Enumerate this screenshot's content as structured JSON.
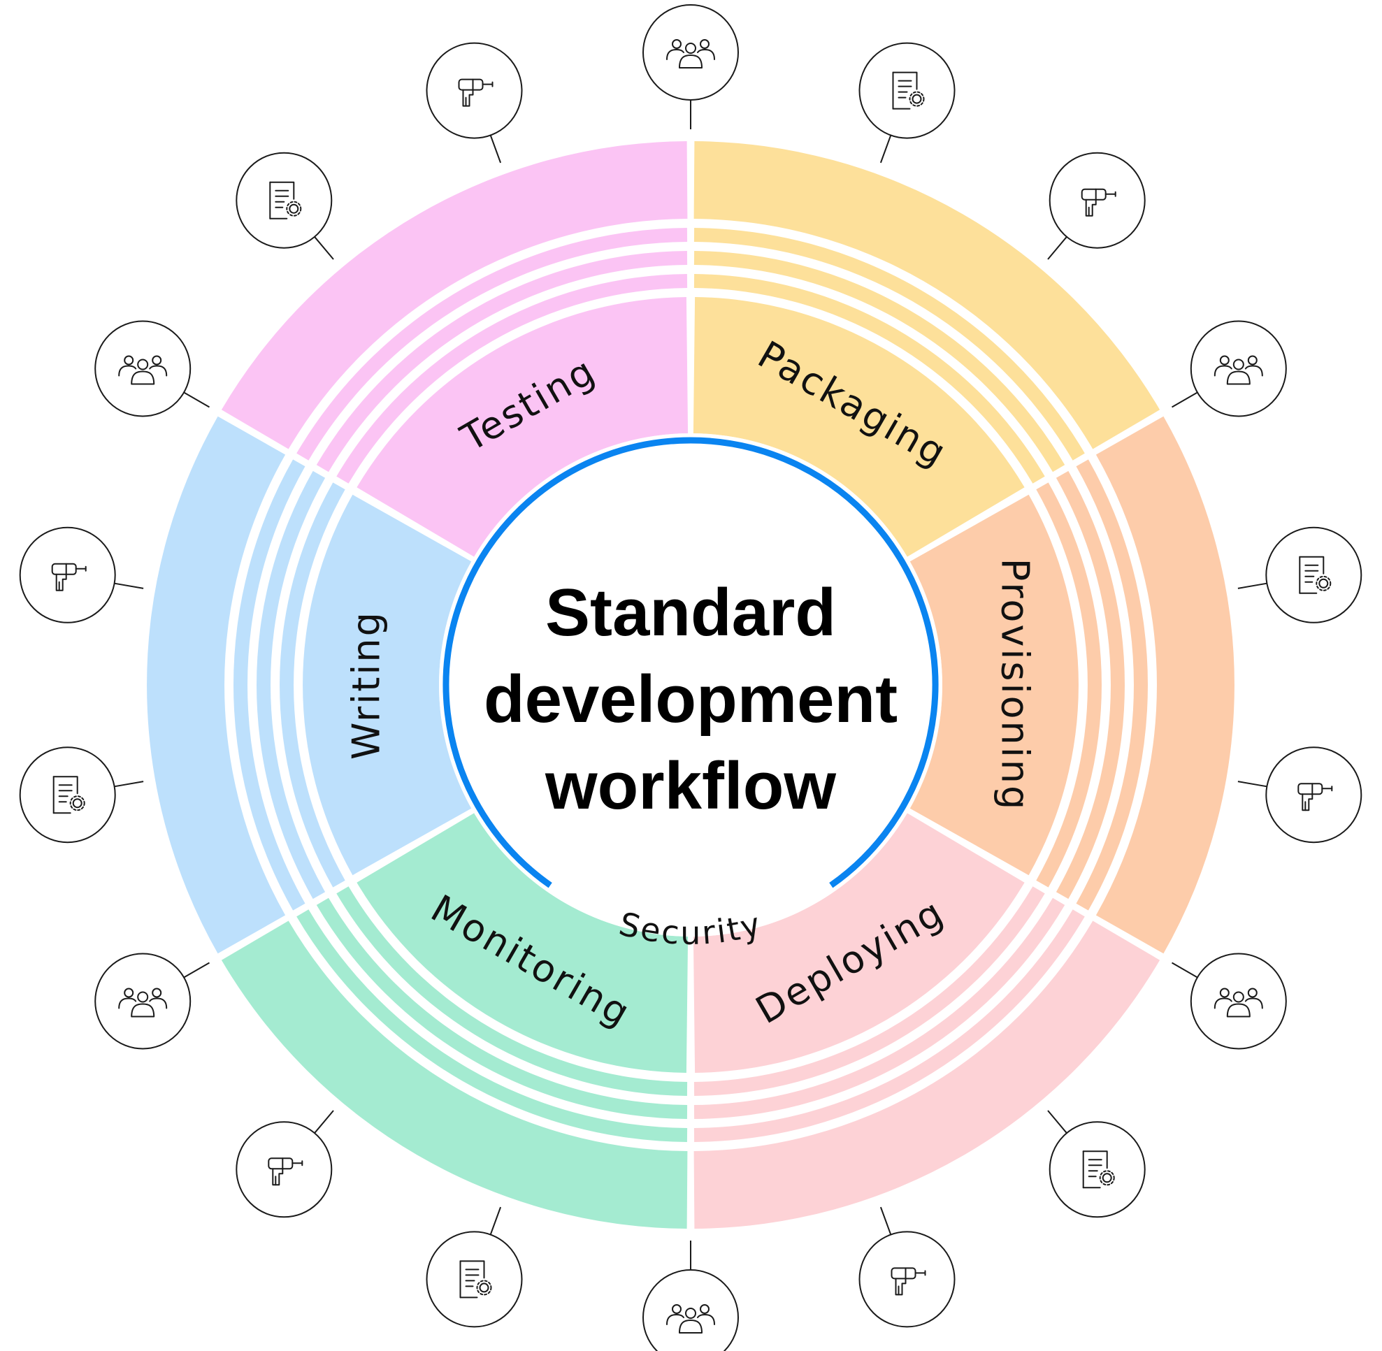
{
  "diagram": {
    "title_lines": [
      "Standard",
      "development",
      "workflow"
    ],
    "center_ring_label": "Security",
    "colors": {
      "center_ring": "#0a84f0",
      "icon_stroke": "#1a1a1a"
    },
    "segments": [
      {
        "id": "testing",
        "label": "Testing",
        "color": "#fbc4f4"
      },
      {
        "id": "packaging",
        "label": "Packaging",
        "color": "#fde09a"
      },
      {
        "id": "provisioning",
        "label": "Provisioning",
        "color": "#fdccaa"
      },
      {
        "id": "deploying",
        "label": "Deploying",
        "color": "#fdd2d6"
      },
      {
        "id": "monitoring",
        "label": "Monitoring",
        "color": "#a4ebd1"
      },
      {
        "id": "writing",
        "label": "Writing",
        "color": "#bde0fc"
      }
    ],
    "outer_icons": [
      "drill-icon",
      "people-icon",
      "document-gear-icon",
      "drill-icon",
      "people-icon",
      "document-gear-icon",
      "drill-icon",
      "people-icon",
      "document-gear-icon",
      "drill-icon",
      "people-icon",
      "document-gear-icon",
      "drill-icon",
      "people-icon",
      "document-gear-icon",
      "drill-icon",
      "people-icon",
      "document-gear-icon"
    ]
  }
}
